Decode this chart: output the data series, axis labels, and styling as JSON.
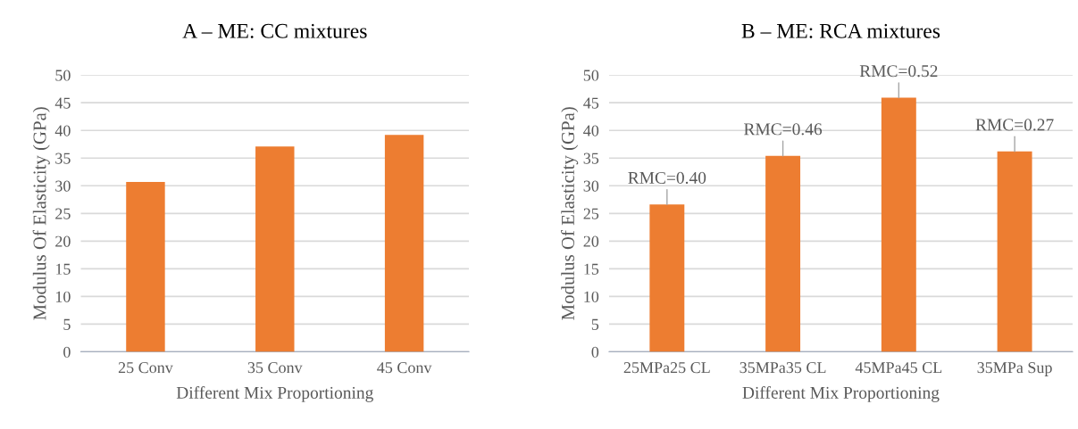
{
  "chart_data": [
    {
      "type": "bar",
      "title": "A – ME: CC mixtures",
      "xlabel": "Different Mix Proportioning",
      "ylabel": "Modulus Of Elasticity (GPa)",
      "categories": [
        "25 Conv",
        "35 Conv",
        "45 Conv"
      ],
      "values": [
        30.7,
        37.1,
        39.2
      ],
      "color": "#ed7d31",
      "ylim": [
        0,
        50
      ],
      "yticks": [
        0,
        5,
        10,
        15,
        20,
        25,
        30,
        35,
        40,
        45,
        50
      ],
      "grid": "y",
      "legend": false
    },
    {
      "type": "bar",
      "title": "B – ME: RCA mixtures",
      "xlabel": "Different Mix Proportioning",
      "ylabel": "Modulus Of Elasticity (GPa)",
      "categories": [
        "25MPa25 CL",
        "35MPa35 CL",
        "45MPa45 CL",
        "35MPa Sup"
      ],
      "values": [
        26.6,
        35.4,
        45.9,
        36.2
      ],
      "color": "#ed7d31",
      "ylim": [
        0,
        50
      ],
      "yticks": [
        0,
        5,
        10,
        15,
        20,
        25,
        30,
        35,
        40,
        45,
        50
      ],
      "grid": "y",
      "legend": false,
      "annotations": [
        {
          "text": "RMC=0.40",
          "x": "25MPa25 CL",
          "y": 26.6
        },
        {
          "text": "RMC=0.46",
          "x": "35MPa35 CL",
          "y": 35.4
        },
        {
          "text": "RMC=0.52",
          "x": "45MPa45 CL",
          "y": 45.9
        },
        {
          "text": "RMC=0.27",
          "x": "35MPa Sup",
          "y": 36.2
        }
      ]
    }
  ]
}
